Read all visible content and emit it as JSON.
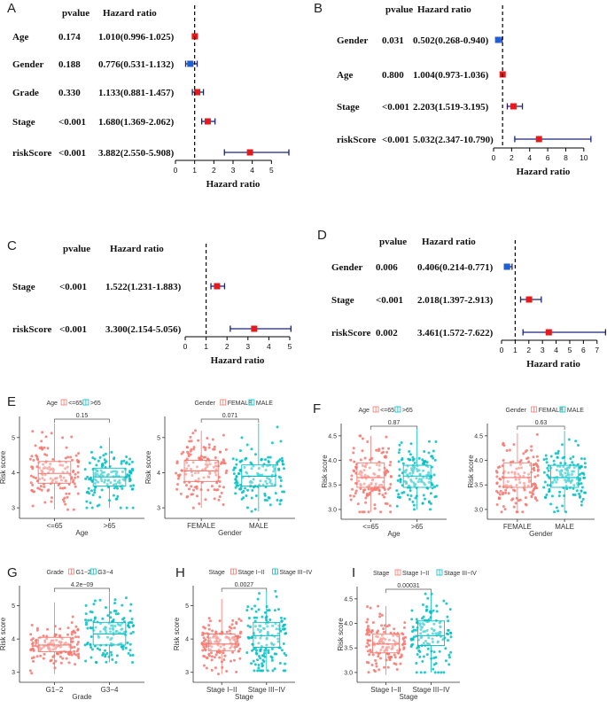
{
  "chart_data": [
    {
      "type": "forest",
      "panel": "A",
      "header_pvalue": "pvalue",
      "header_hr": "Hazard ratio",
      "xlabel": "Hazard ratio",
      "xlim": [
        0,
        6
      ],
      "ticks": [
        "0",
        "1",
        "2",
        "3",
        "4",
        "5"
      ],
      "rows": [
        {
          "name": "Age",
          "pvalue": "0.174",
          "hr_text": "1.010(0.996-1.025)",
          "hr": 1.01,
          "lo": 0.996,
          "hi": 1.025,
          "color": "#e41a1c"
        },
        {
          "name": "Gender",
          "pvalue": "0.188",
          "hr_text": "0.776(0.531-1.132)",
          "hr": 0.776,
          "lo": 0.531,
          "hi": 1.132,
          "color": "#1f5fd6"
        },
        {
          "name": "Grade",
          "pvalue": "0.330",
          "hr_text": "1.133(0.881-1.457)",
          "hr": 1.133,
          "lo": 0.881,
          "hi": 1.457,
          "color": "#e41a1c"
        },
        {
          "name": "Stage",
          "pvalue": "<0.001",
          "hr_text": "1.680(1.369-2.062)",
          "hr": 1.68,
          "lo": 1.369,
          "hi": 2.062,
          "color": "#e41a1c"
        },
        {
          "name": "riskScore",
          "pvalue": "<0.001",
          "hr_text": "3.882(2.550-5.908)",
          "hr": 3.882,
          "lo": 2.55,
          "hi": 5.908,
          "color": "#e41a1c"
        }
      ]
    },
    {
      "type": "forest",
      "panel": "B",
      "header_pvalue": "pvalue",
      "header_hr": "Hazard ratio",
      "xlabel": "Hazard ratio",
      "xlim": [
        0,
        11
      ],
      "ticks": [
        "0",
        "2",
        "4",
        "6",
        "8",
        "10"
      ],
      "rows": [
        {
          "name": "Gender",
          "pvalue": "0.031",
          "hr_text": "0.502(0.268-0.940)",
          "hr": 0.502,
          "lo": 0.268,
          "hi": 0.94,
          "color": "#1f5fd6"
        },
        {
          "name": "Age",
          "pvalue": "0.800",
          "hr_text": "1.004(0.973-1.036)",
          "hr": 1.004,
          "lo": 0.973,
          "hi": 1.036,
          "color": "#e41a1c"
        },
        {
          "name": "Stage",
          "pvalue": "<0.001",
          "hr_text": "2.203(1.519-3.195)",
          "hr": 2.203,
          "lo": 1.519,
          "hi": 3.195,
          "color": "#e41a1c"
        },
        {
          "name": "riskScore",
          "pvalue": "<0.001",
          "hr_text": "5.032(2.347-10.790)",
          "hr": 5.032,
          "lo": 2.347,
          "hi": 10.79,
          "color": "#e41a1c"
        }
      ]
    },
    {
      "type": "forest",
      "panel": "C",
      "header_pvalue": "pvalue",
      "header_hr": "Hazard ratio",
      "xlabel": "Hazard ratio",
      "xlim": [
        0,
        5
      ],
      "ticks": [
        "0",
        "1",
        "2",
        "3",
        "4",
        "5"
      ],
      "rows": [
        {
          "name": "Stage",
          "pvalue": "<0.001",
          "hr_text": "1.522(1.231-1.883)",
          "hr": 1.522,
          "lo": 1.231,
          "hi": 1.883,
          "color": "#e41a1c"
        },
        {
          "name": "riskScore",
          "pvalue": "<0.001",
          "hr_text": "3.300(2.154-5.056)",
          "hr": 3.3,
          "lo": 2.154,
          "hi": 5.056,
          "color": "#e41a1c"
        }
      ]
    },
    {
      "type": "forest",
      "panel": "D",
      "header_pvalue": "pvalue",
      "header_hr": "Hazard ratio",
      "xlabel": "Hazard ratio",
      "xlim": [
        0,
        7.6
      ],
      "ticks": [
        "0",
        "1",
        "2",
        "3",
        "4",
        "5",
        "6",
        "7"
      ],
      "rows": [
        {
          "name": "Gender",
          "pvalue": "0.006",
          "hr_text": "0.406(0.214-0.771)",
          "hr": 0.406,
          "lo": 0.214,
          "hi": 0.771,
          "color": "#1f5fd6"
        },
        {
          "name": "Stage",
          "pvalue": "<0.001",
          "hr_text": "2.018(1.397-2.913)",
          "hr": 2.018,
          "lo": 1.397,
          "hi": 2.913,
          "color": "#e41a1c"
        },
        {
          "name": "riskScore",
          "pvalue": "0.002",
          "hr_text": "3.461(1.572-7.622)",
          "hr": 3.461,
          "lo": 1.572,
          "hi": 7.622,
          "color": "#e41a1c"
        }
      ]
    },
    {
      "type": "box",
      "panel": "E",
      "legend_title": "Age",
      "categories": [
        "<=65",
        ">65"
      ],
      "xlabel": "Age",
      "ylabel": "Risk score",
      "ylim": [
        2.7,
        5.6
      ],
      "yticks": [
        "3",
        "4",
        "5"
      ],
      "pvalue": "0.15",
      "groups": [
        {
          "q1": 3.7,
          "median": 3.98,
          "q3": 4.32,
          "min": 2.95,
          "max": 5.4
        },
        {
          "q1": 3.62,
          "median": 3.88,
          "q3": 4.13,
          "min": 3.0,
          "max": 5.0
        }
      ]
    },
    {
      "type": "box",
      "panel": "E",
      "legend_title": "Gender",
      "categories": [
        "FEMALE",
        "MALE"
      ],
      "xlabel": "Gender",
      "ylabel": "Risk score",
      "ylim": [
        2.7,
        5.6
      ],
      "yticks": [
        "3",
        "4",
        "5"
      ],
      "pvalue": "0.071",
      "groups": [
        {
          "q1": 3.75,
          "median": 4.05,
          "q3": 4.35,
          "min": 3.0,
          "max": 5.2
        },
        {
          "q1": 3.62,
          "median": 3.9,
          "q3": 4.22,
          "min": 2.9,
          "max": 5.4
        }
      ]
    },
    {
      "type": "box",
      "panel": "F",
      "legend_title": "Age",
      "categories": [
        "<=65",
        ">65"
      ],
      "xlabel": "Age",
      "ylabel": "Risk score",
      "ylim": [
        2.8,
        4.75
      ],
      "yticks": [
        "3.0",
        "3.5",
        "4.0",
        "4.5"
      ],
      "pvalue": "0.87",
      "groups": [
        {
          "q1": 3.45,
          "median": 3.65,
          "q3": 3.95,
          "min": 2.95,
          "max": 4.5
        },
        {
          "q1": 3.45,
          "median": 3.68,
          "q3": 3.9,
          "min": 3.0,
          "max": 4.65
        }
      ]
    },
    {
      "type": "box",
      "panel": "F",
      "legend_title": "Gender",
      "categories": [
        "FEMALE",
        "MALE"
      ],
      "xlabel": "Gender",
      "ylabel": "Risk score",
      "ylim": [
        2.8,
        4.75
      ],
      "yticks": [
        "3.0",
        "3.5",
        "4.0",
        "4.5"
      ],
      "pvalue": "0.63",
      "groups": [
        {
          "q1": 3.45,
          "median": 3.65,
          "q3": 3.95,
          "min": 2.95,
          "max": 4.55
        },
        {
          "q1": 3.45,
          "median": 3.65,
          "q3": 3.9,
          "min": 2.95,
          "max": 4.6
        }
      ]
    },
    {
      "type": "box",
      "panel": "G",
      "legend_title": "Grade",
      "categories": [
        "G1−2",
        "G3−4"
      ],
      "xlabel": "Grade",
      "ylabel": "Risk score",
      "ylim": [
        2.7,
        5.6
      ],
      "yticks": [
        "3",
        "4",
        "5"
      ],
      "pvalue": "4.2e−09",
      "groups": [
        {
          "q1": 3.62,
          "median": 3.82,
          "q3": 4.05,
          "min": 2.95,
          "max": 5.1
        },
        {
          "q1": 3.82,
          "median": 4.15,
          "q3": 4.5,
          "min": 3.3,
          "max": 5.4
        }
      ]
    },
    {
      "type": "box",
      "panel": "H",
      "legend_title": "Stage",
      "categories": [
        "Stage I−II",
        "Stage III−IV"
      ],
      "xlabel": "Stage",
      "ylabel": "Risk score",
      "ylim": [
        2.7,
        5.6
      ],
      "yticks": [
        "3",
        "4",
        "5"
      ],
      "pvalue": "0.0027",
      "groups": [
        {
          "q1": 3.65,
          "median": 3.85,
          "q3": 4.15,
          "min": 2.95,
          "max": 5.2
        },
        {
          "q1": 3.75,
          "median": 4.1,
          "q3": 4.5,
          "min": 3.05,
          "max": 5.45
        }
      ]
    },
    {
      "type": "box",
      "panel": "I",
      "legend_title": "Stage",
      "categories": [
        "Stage I−II",
        "Stage III−IV"
      ],
      "xlabel": "Stage",
      "ylabel": "Risk score",
      "ylim": [
        2.8,
        4.75
      ],
      "yticks": [
        "3.0",
        "3.5",
        "4.0",
        "4.5"
      ],
      "pvalue": "0.00031",
      "groups": [
        {
          "q1": 3.4,
          "median": 3.58,
          "q3": 3.78,
          "min": 2.95,
          "max": 4.35
        },
        {
          "q1": 3.55,
          "median": 3.75,
          "q3": 4.05,
          "min": 3.0,
          "max": 4.6
        }
      ]
    }
  ],
  "colors": {
    "low": "#f8766d",
    "high": "#00bfc4",
    "forest_line": "#1a237e"
  }
}
